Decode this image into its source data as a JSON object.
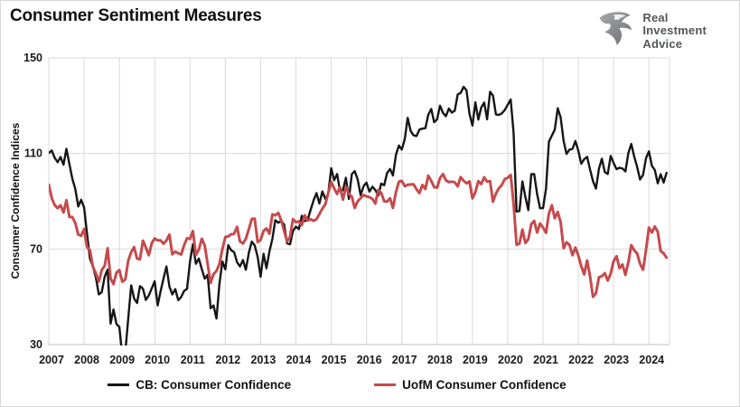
{
  "header": {
    "title": "Consumer Sentiment Measures"
  },
  "logo": {
    "icon": "eagle-icon",
    "line1": "Real",
    "line2": "Investment",
    "line3": "Advice"
  },
  "colors": {
    "cb_line": "#161616",
    "uofm_line": "#c64a4c",
    "gridline": "#d9d9d9",
    "axis_line": "#bfbfbf",
    "tick_text": "#1a1a1a",
    "logo_gray": "#808285",
    "logo_text": "#54565a"
  },
  "chart_data": {
    "type": "line",
    "title": "Consumer Sentiment Measures",
    "xlabel": "",
    "ylabel": "Consumer Confidence Indices",
    "ylim": [
      30,
      150
    ],
    "yticks": [
      30,
      70,
      110,
      150
    ],
    "xtick_years": [
      2007,
      2008,
      2009,
      2010,
      2011,
      2012,
      2013,
      2014,
      2015,
      2016,
      2017,
      2018,
      2019,
      2020,
      2021,
      2022,
      2023,
      2024
    ],
    "x_start": "2007-01",
    "x_end": "2024-07",
    "frequency": "monthly",
    "grid": true,
    "legend_position": "bottom",
    "series": [
      {
        "name": "CB: Consumer Confidence",
        "color": "#161616",
        "stroke_width": 2.4,
        "values": [
          110.2,
          111.2,
          108.2,
          106.3,
          108.5,
          105.3,
          111.9,
          105.6,
          99.5,
          95.2,
          87.8,
          90.6,
          87.3,
          76.4,
          65.9,
          62.8,
          58.1,
          51.0,
          51.9,
          58.5,
          61.4,
          38.8,
          44.7,
          38.6,
          37.4,
          25.3,
          26.9,
          40.8,
          54.8,
          49.3,
          47.4,
          54.5,
          53.4,
          48.7,
          50.6,
          53.6,
          56.5,
          46.4,
          52.3,
          57.7,
          62.7,
          54.3,
          51.0,
          53.2,
          48.6,
          49.9,
          52.5,
          53.3,
          64.8,
          72.0,
          63.8,
          66.0,
          61.7,
          57.6,
          59.2,
          45.2,
          46.4,
          40.9,
          55.2,
          64.8,
          61.5,
          71.6,
          69.5,
          68.7,
          64.4,
          62.7,
          65.4,
          61.3,
          68.4,
          73.1,
          71.5,
          66.7,
          58.4,
          68.0,
          61.9,
          69.0,
          74.3,
          82.1,
          81.0,
          81.8,
          80.2,
          72.4,
          72.0,
          77.5,
          79.4,
          78.3,
          83.9,
          81.7,
          82.2,
          86.4,
          90.3,
          93.4,
          89.0,
          94.1,
          91.0,
          93.1,
          103.8,
          98.8,
          101.4,
          94.3,
          94.6,
          99.8,
          91.0,
          101.3,
          102.6,
          99.1,
          92.6,
          96.3,
          97.8,
          94.0,
          96.1,
          94.7,
          92.4,
          97.4,
          96.7,
          101.8,
          103.5,
          100.8,
          109.4,
          113.3,
          111.6,
          116.1,
          124.9,
          119.4,
          117.6,
          117.3,
          120.0,
          120.4,
          120.6,
          126.2,
          128.6,
          123.1,
          124.3,
          130.0,
          127.0,
          125.6,
          128.8,
          127.1,
          127.9,
          134.7,
          135.3,
          137.9,
          136.4,
          126.6,
          121.7,
          131.4,
          124.2,
          129.2,
          131.3,
          124.3,
          135.8,
          134.2,
          126.3,
          126.1,
          126.8,
          128.2,
          130.4,
          132.6,
          118.8,
          85.7,
          85.9,
          98.3,
          91.7,
          86.3,
          101.3,
          101.4,
          92.9,
          87.1,
          87.1,
          95.2,
          114.9,
          117.5,
          120.0,
          128.9,
          125.1,
          115.2,
          109.8,
          111.6,
          111.9,
          115.2,
          111.1,
          105.7,
          107.6,
          108.6,
          103.2,
          98.4,
          95.3,
          103.6,
          107.8,
          102.2,
          101.4,
          109.0,
          106.0,
          103.4,
          104.0,
          103.7,
          102.5,
          110.1,
          114.0,
          108.7,
          104.3,
          99.1,
          101.0,
          108.0,
          110.9,
          104.8,
          103.1,
          97.5,
          101.3,
          97.8,
          101.9
        ]
      },
      {
        "name": "UofM Consumer Confidence",
        "color": "#c64a4c",
        "stroke_width": 3,
        "values": [
          96.9,
          91.3,
          88.4,
          87.1,
          88.3,
          85.3,
          90.4,
          83.4,
          83.4,
          80.9,
          76.1,
          75.5,
          78.4,
          70.8,
          69.5,
          62.6,
          59.8,
          56.4,
          61.2,
          63.0,
          70.3,
          57.6,
          55.3,
          60.1,
          61.2,
          56.3,
          57.3,
          65.1,
          68.7,
          70.8,
          66.0,
          65.7,
          73.5,
          70.6,
          67.4,
          72.5,
          74.4,
          73.6,
          73.6,
          72.2,
          73.6,
          76.0,
          67.8,
          68.9,
          68.2,
          67.7,
          71.6,
          74.5,
          74.2,
          77.5,
          67.5,
          69.8,
          74.3,
          71.5,
          63.7,
          55.8,
          59.5,
          60.8,
          63.7,
          69.9,
          75.0,
          75.3,
          76.2,
          76.4,
          79.3,
          73.2,
          72.3,
          74.3,
          78.3,
          82.6,
          82.7,
          72.9,
          73.8,
          77.6,
          78.6,
          76.4,
          84.5,
          84.1,
          85.1,
          82.1,
          77.5,
          73.2,
          75.1,
          82.5,
          81.2,
          81.6,
          80.0,
          84.1,
          81.9,
          82.5,
          81.8,
          82.5,
          84.6,
          86.9,
          88.8,
          93.6,
          98.1,
          95.4,
          93.0,
          95.9,
          90.7,
          96.1,
          93.1,
          91.9,
          87.2,
          90.0,
          91.3,
          92.6,
          92.0,
          91.7,
          91.0,
          89.0,
          94.7,
          93.5,
          90.0,
          89.8,
          91.2,
          87.2,
          93.8,
          98.2,
          98.5,
          96.3,
          96.9,
          97.0,
          97.1,
          95.0,
          93.4,
          96.8,
          95.1,
          100.7,
          98.5,
          95.9,
          95.7,
          99.7,
          101.4,
          98.8,
          98.0,
          98.2,
          97.9,
          96.2,
          100.1,
          98.6,
          97.5,
          98.3,
          91.2,
          93.8,
          98.4,
          97.2,
          100.0,
          98.2,
          98.4,
          89.8,
          93.2,
          95.5,
          96.8,
          99.3,
          99.8,
          101.0,
          89.1,
          71.8,
          72.3,
          78.1,
          72.5,
          74.1,
          80.4,
          81.8,
          76.9,
          80.7,
          79.0,
          76.8,
          84.9,
          88.3,
          82.9,
          85.5,
          81.2,
          70.3,
          72.8,
          71.7,
          67.4,
          70.6,
          67.2,
          62.8,
          59.4,
          65.2,
          58.4,
          50.0,
          51.5,
          58.2,
          58.6,
          59.9,
          56.8,
          59.7,
          64.9,
          67.0,
          62.0,
          63.5,
          59.2,
          64.4,
          71.6,
          69.5,
          68.1,
          63.8,
          61.3,
          69.7,
          79.0,
          76.9,
          79.4,
          77.2,
          69.1,
          68.2,
          66.4
        ]
      }
    ]
  }
}
